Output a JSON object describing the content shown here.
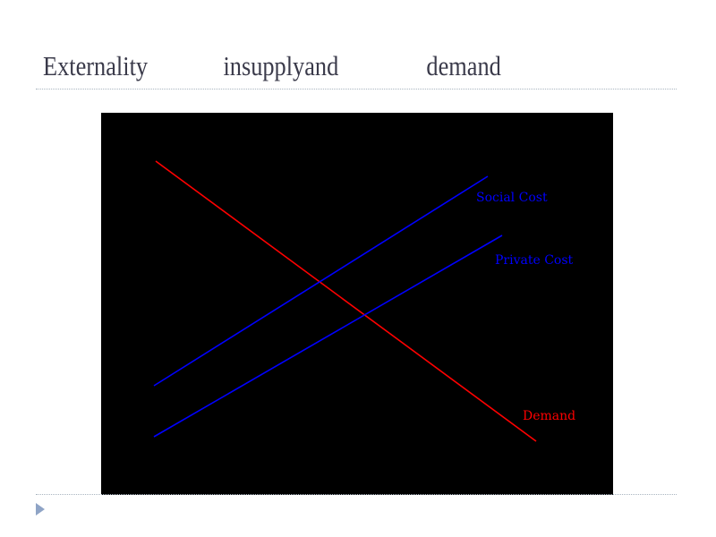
{
  "slide": {
    "title_words": [
      "Externality",
      "insupplyand",
      "demand"
    ]
  },
  "diagram": {
    "background": "#000000",
    "curves": [
      {
        "label": "Demand",
        "color": "#ff0000"
      },
      {
        "label": "Social Cost",
        "color": "#0000ff"
      },
      {
        "label": "Private Cost",
        "color": "#0000ff"
      }
    ]
  },
  "footer": {
    "bullet_icon": "triangle-right-icon"
  }
}
